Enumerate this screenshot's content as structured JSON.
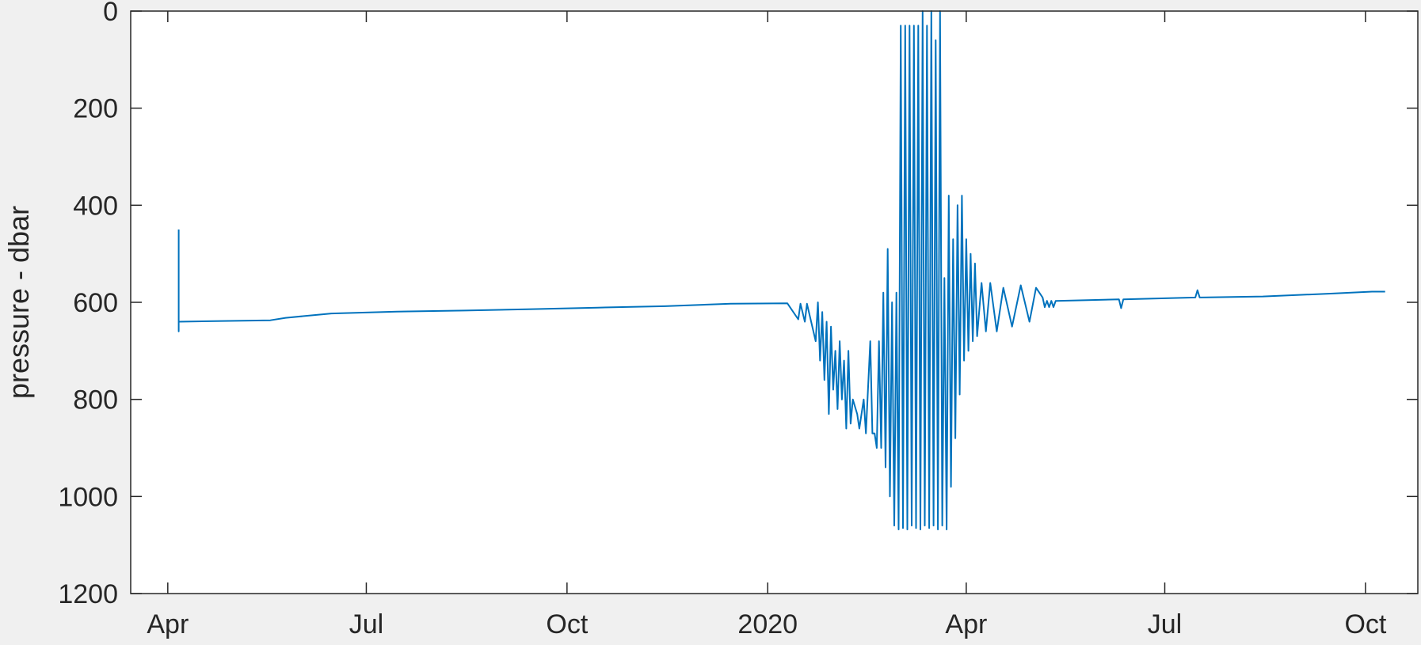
{
  "chart_data": {
    "type": "line",
    "title": "",
    "xlabel": "",
    "ylabel": "pressure - dbar",
    "y_reversed": true,
    "ylim": [
      0,
      1200
    ],
    "xlim": [
      "2019-03-15",
      "2020-10-25"
    ],
    "grid": false,
    "legend": "none",
    "line_color": "#0072bd",
    "y_ticks": [
      0,
      200,
      400,
      600,
      800,
      1000,
      1200
    ],
    "x_ticks": [
      {
        "date": "2019-04-01",
        "label": "Apr"
      },
      {
        "date": "2019-07-01",
        "label": "Jul"
      },
      {
        "date": "2019-10-01",
        "label": "Oct"
      },
      {
        "date": "2020-01-01",
        "label": "2020"
      },
      {
        "date": "2020-04-01",
        "label": "Apr"
      },
      {
        "date": "2020-07-01",
        "label": "Jul"
      },
      {
        "date": "2020-10-01",
        "label": "Oct"
      }
    ],
    "series": [
      {
        "points": [
          [
            "2019-04-06",
            450
          ],
          [
            "2019-04-06",
            660
          ],
          [
            "2019-04-06",
            640
          ],
          [
            "2019-05-18",
            637
          ],
          [
            "2019-05-25",
            632
          ],
          [
            "2019-06-15",
            623
          ],
          [
            "2019-07-15",
            619
          ],
          [
            "2019-08-15",
            617
          ],
          [
            "2019-09-15",
            614
          ],
          [
            "2019-10-15",
            611
          ],
          [
            "2019-11-15",
            608
          ],
          [
            "2019-12-15",
            603
          ],
          [
            "2020-01-10",
            602
          ],
          [
            "2020-01-15",
            635
          ],
          [
            "2020-01-16",
            603
          ],
          [
            "2020-01-18",
            640
          ],
          [
            "2020-01-19",
            603
          ],
          [
            "2020-01-23",
            680
          ],
          [
            "2020-01-24",
            600
          ],
          [
            "2020-01-25",
            720
          ],
          [
            "2020-01-26",
            620
          ],
          [
            "2020-01-27",
            760
          ],
          [
            "2020-01-28",
            640
          ],
          [
            "2020-01-29",
            830
          ],
          [
            "2020-01-30",
            650
          ],
          [
            "2020-01-31",
            780
          ],
          [
            "2020-02-01",
            700
          ],
          [
            "2020-02-02",
            820
          ],
          [
            "2020-02-03",
            680
          ],
          [
            "2020-02-04",
            800
          ],
          [
            "2020-02-05",
            720
          ],
          [
            "2020-02-06",
            860
          ],
          [
            "2020-02-07",
            700
          ],
          [
            "2020-02-08",
            850
          ],
          [
            "2020-02-09",
            800
          ],
          [
            "2020-02-11",
            830
          ],
          [
            "2020-02-12",
            860
          ],
          [
            "2020-02-14",
            800
          ],
          [
            "2020-02-15",
            870
          ],
          [
            "2020-02-17",
            680
          ],
          [
            "2020-02-18",
            870
          ],
          [
            "2020-02-19",
            870
          ],
          [
            "2020-02-20",
            900
          ],
          [
            "2020-02-21",
            680
          ],
          [
            "2020-02-22",
            900
          ],
          [
            "2020-02-23",
            580
          ],
          [
            "2020-02-24",
            940
          ],
          [
            "2020-02-25",
            490
          ],
          [
            "2020-02-26",
            1000
          ],
          [
            "2020-02-27",
            600
          ],
          [
            "2020-02-28",
            1060
          ],
          [
            "2020-02-29",
            580
          ],
          [
            "2020-03-01",
            1068
          ],
          [
            "2020-03-02",
            30
          ],
          [
            "2020-03-03",
            1065
          ],
          [
            "2020-03-04",
            30
          ],
          [
            "2020-03-05",
            1068
          ],
          [
            "2020-03-06",
            30
          ],
          [
            "2020-03-07",
            1060
          ],
          [
            "2020-03-08",
            30
          ],
          [
            "2020-03-09",
            1065
          ],
          [
            "2020-03-10",
            30
          ],
          [
            "2020-03-11",
            1068
          ],
          [
            "2020-03-12",
            0
          ],
          [
            "2020-03-13",
            1060
          ],
          [
            "2020-03-14",
            30
          ],
          [
            "2020-03-15",
            1065
          ],
          [
            "2020-03-16",
            0
          ],
          [
            "2020-03-17",
            1060
          ],
          [
            "2020-03-18",
            60
          ],
          [
            "2020-03-19",
            1068
          ],
          [
            "2020-03-20",
            0
          ],
          [
            "2020-03-21",
            1060
          ],
          [
            "2020-03-22",
            550
          ],
          [
            "2020-03-23",
            1068
          ],
          [
            "2020-03-24",
            380
          ],
          [
            "2020-03-25",
            980
          ],
          [
            "2020-03-26",
            470
          ],
          [
            "2020-03-27",
            880
          ],
          [
            "2020-03-28",
            400
          ],
          [
            "2020-03-29",
            790
          ],
          [
            "2020-03-30",
            380
          ],
          [
            "2020-03-31",
            720
          ],
          [
            "2020-04-01",
            470
          ],
          [
            "2020-04-02",
            700
          ],
          [
            "2020-04-03",
            500
          ],
          [
            "2020-04-04",
            680
          ],
          [
            "2020-04-05",
            520
          ],
          [
            "2020-04-06",
            670
          ],
          [
            "2020-04-08",
            560
          ],
          [
            "2020-04-10",
            660
          ],
          [
            "2020-04-12",
            560
          ],
          [
            "2020-04-15",
            660
          ],
          [
            "2020-04-18",
            570
          ],
          [
            "2020-04-22",
            650
          ],
          [
            "2020-04-26",
            565
          ],
          [
            "2020-04-30",
            640
          ],
          [
            "2020-05-03",
            570
          ],
          [
            "2020-05-06",
            590
          ],
          [
            "2020-05-07",
            610
          ],
          [
            "2020-05-08",
            597
          ],
          [
            "2020-05-09",
            610
          ],
          [
            "2020-05-10",
            597
          ],
          [
            "2020-05-11",
            610
          ],
          [
            "2020-05-12",
            597
          ],
          [
            "2020-06-10",
            594
          ],
          [
            "2020-06-11",
            612
          ],
          [
            "2020-06-12",
            594
          ],
          [
            "2020-07-15",
            590
          ],
          [
            "2020-07-16",
            575
          ],
          [
            "2020-07-17",
            590
          ],
          [
            "2020-08-15",
            588
          ],
          [
            "2020-09-15",
            582
          ],
          [
            "2020-10-04",
            578
          ],
          [
            "2020-10-10",
            578
          ]
        ]
      }
    ]
  }
}
